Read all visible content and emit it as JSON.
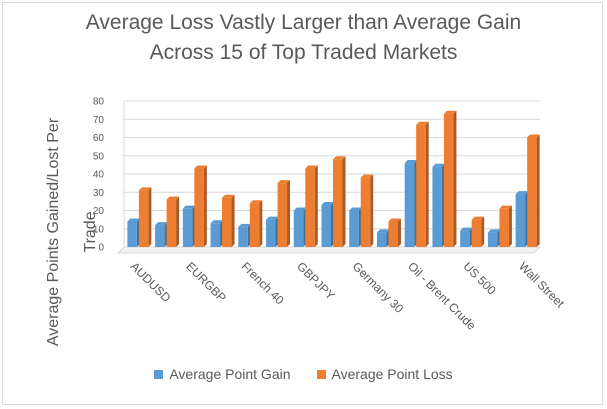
{
  "chart_data": {
    "type": "bar",
    "title_lines": [
      "Average Loss Vastly Larger than Average Gain",
      "Across 15 of Top Traded Markets"
    ],
    "ylabel_lines": [
      "Average Points Gained/Lost Per",
      "Trade"
    ],
    "xlabel": "",
    "ylim": [
      0,
      80
    ],
    "yticks": [
      0,
      10,
      20,
      30,
      40,
      50,
      60,
      70,
      80
    ],
    "grid": true,
    "legend_position": "bottom",
    "categories": [
      "AUDUSD",
      "",
      "EURGBP",
      "",
      "French 40",
      "",
      "GBPJPY",
      "",
      "Germany 30",
      "",
      "Oil - Brent Crude",
      "",
      "US 500",
      "",
      "Wall Street"
    ],
    "series": [
      {
        "name": "Average Point Gain",
        "color": "#5b9bd5",
        "values": [
          14,
          12,
          21,
          13,
          11,
          15,
          20,
          23,
          20,
          8,
          46,
          44,
          9,
          8,
          29
        ]
      },
      {
        "name": "Average Point Loss",
        "color": "#ed7d31",
        "values": [
          31,
          26,
          43,
          27,
          24,
          35,
          43,
          48,
          38,
          14,
          67,
          73,
          15,
          21,
          60
        ]
      }
    ]
  }
}
